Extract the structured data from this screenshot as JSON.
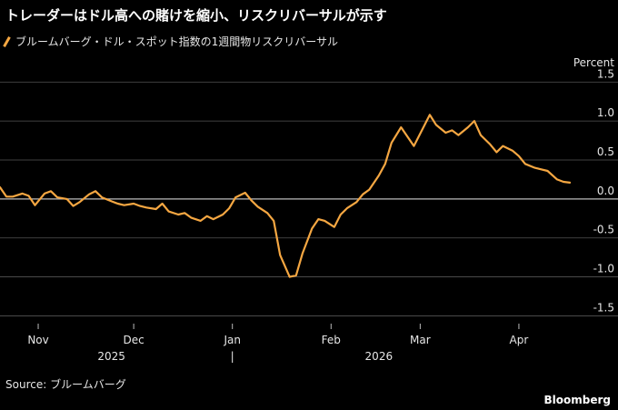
{
  "title": "トレーダーはドル高への賭けを縮小、リスクリバーサルが示す",
  "legend_label": "ブルームバーグ・ドル・スポット指数の1週間物リスクリバーサル",
  "unit": "Percent",
  "source": "Source: ブルームバーグ",
  "brand": "Bloomberg",
  "colors": {
    "line": "#f5a742",
    "grid": "#555555",
    "zero": "#bbbbbb",
    "text": "#e6e6e6"
  },
  "chart_data": {
    "type": "line",
    "xlim": [
      "2025-10-20",
      "2026-04-23"
    ],
    "ylim": [
      -1.6,
      1.55
    ],
    "y_ticks": [
      1.5,
      1.0,
      0.5,
      0.0,
      -0.5,
      -1.0,
      -1.5
    ],
    "y_tick_labels": [
      "1.5",
      "1.0",
      "0.5",
      "0.0",
      "-0.5",
      "-1.0",
      "-1.5"
    ],
    "x_ticks": [
      {
        "date": "2025-11-01",
        "label": "Nov"
      },
      {
        "date": "2025-12-01",
        "label": "Dec"
      },
      {
        "date": "2026-01-01",
        "label": "Jan"
      },
      {
        "date": "2026-02-01",
        "label": "Feb"
      },
      {
        "date": "2026-03-01",
        "label": "Mar"
      },
      {
        "date": "2026-04-01",
        "label": "Apr"
      }
    ],
    "year_labels": [
      {
        "date": "2025-11-24",
        "label": "2025"
      },
      {
        "date": "2026-01-01",
        "label": "|"
      },
      {
        "date": "2026-02-16",
        "label": "2026"
      }
    ],
    "series": [
      {
        "x": [
          "2025-10-20",
          "2025-10-22",
          "2025-10-24",
          "2025-10-27",
          "2025-10-29",
          "2025-10-31",
          "2025-11-03",
          "2025-11-05",
          "2025-11-07",
          "2025-11-10",
          "2025-11-12",
          "2025-11-14",
          "2025-11-17",
          "2025-11-19",
          "2025-11-21",
          "2025-11-24",
          "2025-11-26",
          "2025-11-28",
          "2025-12-01",
          "2025-12-03",
          "2025-12-05",
          "2025-12-08",
          "2025-12-10",
          "2025-12-12",
          "2025-12-15",
          "2025-12-17",
          "2025-12-19",
          "2025-12-22",
          "2025-12-24",
          "2025-12-26",
          "2025-12-29",
          "2025-12-31",
          "2026-01-02",
          "2026-01-05",
          "2026-01-07",
          "2026-01-09",
          "2026-01-12",
          "2026-01-14",
          "2026-01-16",
          "2026-01-19",
          "2026-01-21",
          "2026-01-23",
          "2026-01-26",
          "2026-01-28",
          "2026-01-30",
          "2026-02-02",
          "2026-02-04",
          "2026-02-06",
          "2026-02-09",
          "2026-02-11",
          "2026-02-13",
          "2026-02-16",
          "2026-02-18",
          "2026-02-20",
          "2026-02-23",
          "2026-02-25",
          "2026-02-27",
          "2026-03-02",
          "2026-03-04",
          "2026-03-06",
          "2026-03-09",
          "2026-03-11",
          "2026-03-13",
          "2026-03-16",
          "2026-03-18",
          "2026-03-20",
          "2026-03-23",
          "2026-03-25",
          "2026-03-27",
          "2026-03-30",
          "2026-04-01",
          "2026-04-03",
          "2026-04-06",
          "2026-04-08",
          "2026-04-10",
          "2026-04-13",
          "2026-04-15",
          "2026-04-17"
        ],
        "y": [
          0.15,
          0.03,
          0.03,
          0.07,
          0.04,
          -0.08,
          0.07,
          0.1,
          0.02,
          0.0,
          -0.09,
          -0.04,
          0.06,
          0.1,
          0.02,
          -0.03,
          -0.06,
          -0.08,
          -0.06,
          -0.09,
          -0.11,
          -0.13,
          -0.06,
          -0.16,
          -0.2,
          -0.18,
          -0.24,
          -0.28,
          -0.22,
          -0.26,
          -0.2,
          -0.12,
          0.02,
          0.08,
          -0.02,
          -0.1,
          -0.18,
          -0.28,
          -0.72,
          -1.0,
          -0.98,
          -0.7,
          -0.38,
          -0.26,
          -0.28,
          -0.36,
          -0.2,
          -0.12,
          -0.04,
          0.06,
          0.12,
          0.3,
          0.45,
          0.72,
          0.92,
          0.8,
          0.68,
          0.92,
          1.08,
          0.95,
          0.85,
          0.88,
          0.82,
          0.92,
          1.0,
          0.82,
          0.7,
          0.6,
          0.68,
          0.62,
          0.55,
          0.45,
          0.4,
          0.38,
          0.36,
          0.25,
          0.22,
          0.21
        ]
      }
    ]
  }
}
